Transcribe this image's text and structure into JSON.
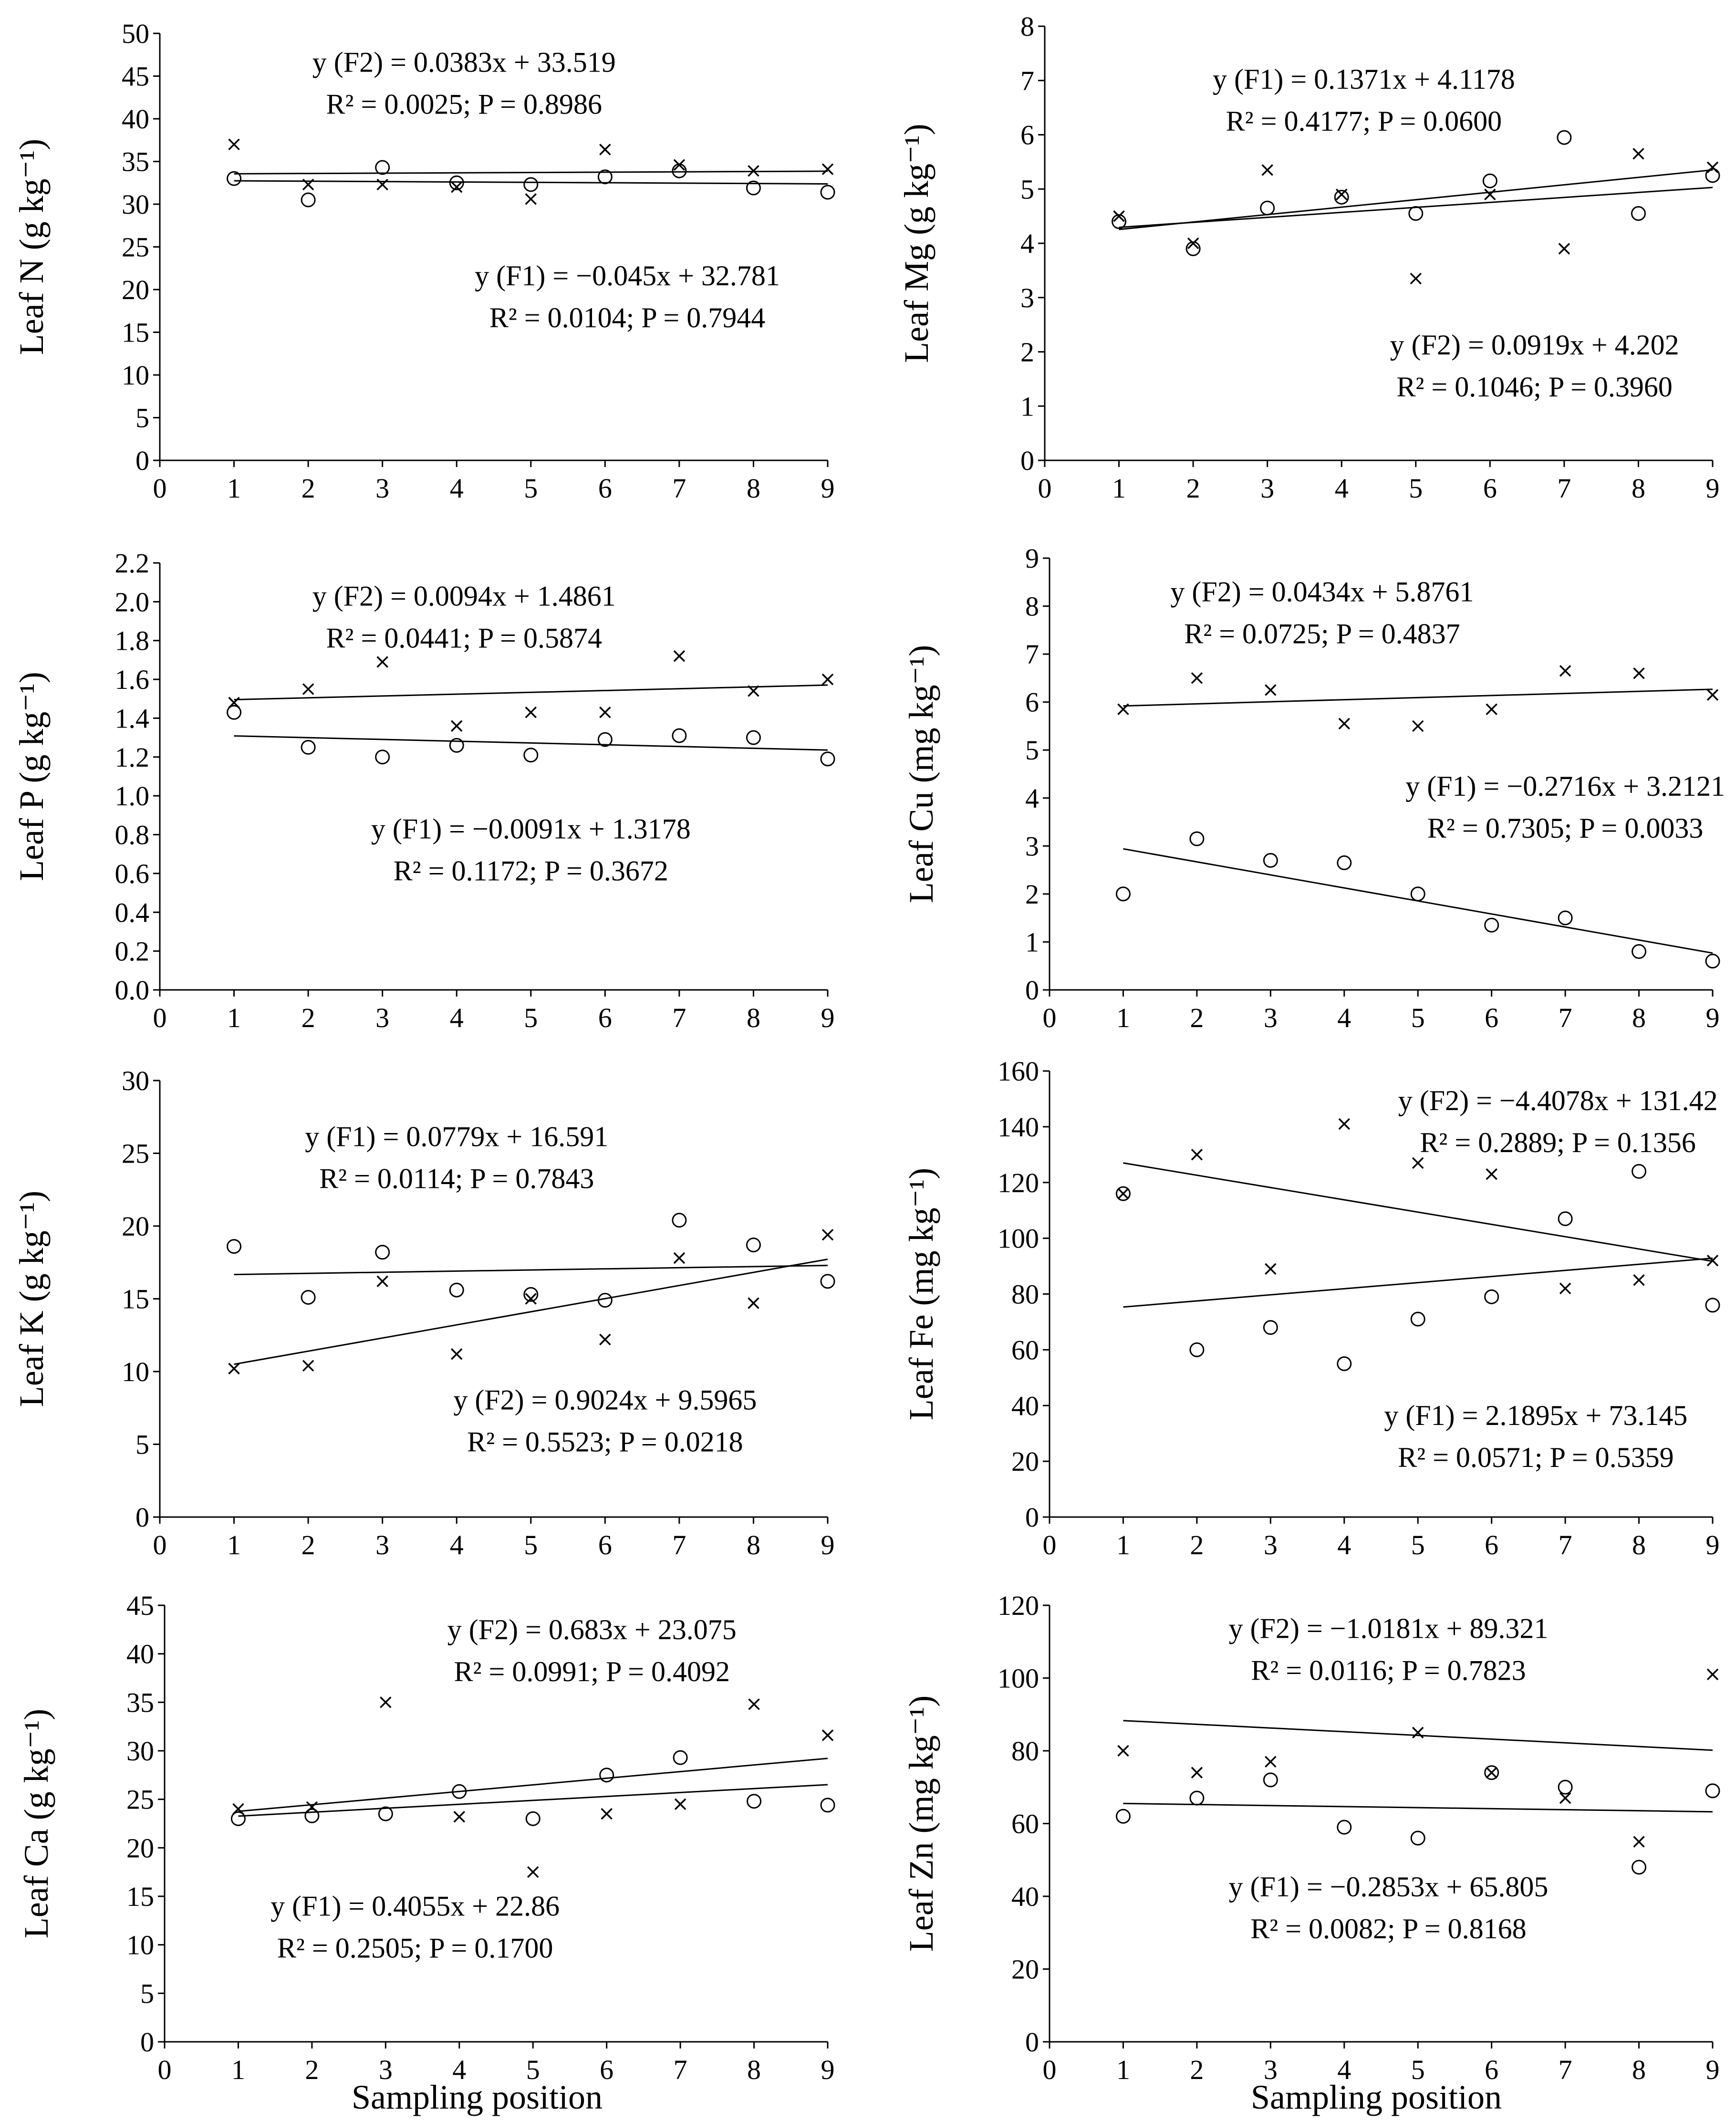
{
  "x_axis_title": "Sampling position",
  "chart_data": [
    {
      "type": "scatter",
      "id": "N",
      "ylabel": "Leaf N (g kg⁻¹)",
      "xlim": [
        0,
        9
      ],
      "ylim": [
        0,
        50
      ],
      "ystep": 5,
      "ydec": 0,
      "xticks": [
        0,
        1,
        2,
        3,
        4,
        5,
        6,
        7,
        8,
        9
      ],
      "series": [
        {
          "name": "F1",
          "marker": "circle",
          "x": [
            1,
            2,
            3,
            4,
            5,
            6,
            7,
            8,
            9
          ],
          "y": [
            33.0,
            30.5,
            34.3,
            32.5,
            32.3,
            33.2,
            33.9,
            31.9,
            31.4
          ],
          "fit": {
            "slope": -0.045,
            "intercept": 32.781
          }
        },
        {
          "name": "F2",
          "marker": "x",
          "x": [
            1,
            2,
            3,
            4,
            5,
            6,
            7,
            8,
            9
          ],
          "y": [
            37.0,
            32.3,
            32.3,
            32.0,
            30.6,
            36.4,
            34.6,
            33.9,
            34.1
          ],
          "fit": {
            "slope": 0.0383,
            "intercept": 33.519
          }
        }
      ],
      "annotations": [
        {
          "lines": [
            "y (F2) = 0.0383x + 33.519",
            "R² = 0.0025; P = 0.8986"
          ],
          "at": [
            4.1,
            45.5
          ]
        },
        {
          "lines": [
            "y (F1) = −0.045x + 32.781",
            "R² = 0.0104; P = 0.7944"
          ],
          "at": [
            6.3,
            20.5
          ]
        }
      ]
    },
    {
      "type": "scatter",
      "id": "Mg",
      "ylabel": "Leaf Mg (g kg⁻¹)",
      "xlim": [
        0,
        9
      ],
      "ylim": [
        0,
        8
      ],
      "ystep": 1,
      "ydec": 0,
      "xticks": [
        0,
        1,
        2,
        3,
        4,
        5,
        6,
        7,
        8,
        9
      ],
      "series": [
        {
          "name": "F1",
          "marker": "x",
          "x": [
            1,
            2,
            3,
            4,
            5,
            6,
            7,
            8,
            9
          ],
          "y": [
            4.5,
            4.0,
            5.35,
            4.9,
            3.35,
            4.9,
            3.9,
            5.65,
            5.4
          ],
          "fit": {
            "slope": 0.1371,
            "intercept": 4.1178
          }
        },
        {
          "name": "F2",
          "marker": "circle",
          "x": [
            1,
            2,
            3,
            4,
            5,
            6,
            7,
            8,
            9
          ],
          "y": [
            4.4,
            3.9,
            4.65,
            4.85,
            4.55,
            5.15,
            5.95,
            4.55,
            5.25
          ],
          "fit": {
            "slope": 0.0919,
            "intercept": 4.202
          }
        }
      ],
      "annotations": [
        {
          "lines": [
            "y (F1) = 0.1371x + 4.1178",
            "R² = 0.4177; P = 0.0600"
          ],
          "at": [
            4.3,
            6.85
          ]
        },
        {
          "lines": [
            "y (F2) = 0.0919x + 4.202",
            "R² = 0.1046; P = 0.3960"
          ],
          "at": [
            6.6,
            1.95
          ]
        }
      ]
    },
    {
      "type": "scatter",
      "id": "P",
      "ylabel": "Leaf P (g kg⁻¹)",
      "xlim": [
        0,
        9
      ],
      "ylim": [
        0,
        2.2
      ],
      "ystep": 0.2,
      "ydec": 1,
      "xticks": [
        0,
        1,
        2,
        3,
        4,
        5,
        6,
        7,
        8,
        9
      ],
      "series": [
        {
          "name": "F1",
          "marker": "circle",
          "x": [
            1,
            2,
            3,
            4,
            5,
            6,
            7,
            8,
            9
          ],
          "y": [
            1.43,
            1.25,
            1.2,
            1.26,
            1.21,
            1.29,
            1.31,
            1.3,
            1.19
          ],
          "fit": {
            "slope": -0.0091,
            "intercept": 1.3178
          }
        },
        {
          "name": "F2",
          "marker": "x",
          "x": [
            1,
            2,
            3,
            4,
            5,
            6,
            7,
            8,
            9
          ],
          "y": [
            1.48,
            1.55,
            1.69,
            1.36,
            1.43,
            1.43,
            1.72,
            1.54,
            1.6
          ],
          "fit": {
            "slope": 0.0094,
            "intercept": 1.4861
          }
        }
      ],
      "annotations": [
        {
          "lines": [
            "y (F2)  = 0.0094x + 1.4861",
            "R² = 0.0441; P = 0.5874"
          ],
          "at": [
            4.1,
            1.98
          ]
        },
        {
          "lines": [
            "y (F1) = −0.0091x + 1.3178",
            "R² = 0.1172; P = 0.3672"
          ],
          "at": [
            5.0,
            0.78
          ]
        }
      ]
    },
    {
      "type": "scatter",
      "id": "Cu",
      "ylabel": "Leaf Cu (mg kg⁻¹)",
      "xlim": [
        0,
        9
      ],
      "ylim": [
        0,
        9
      ],
      "ystep": 1,
      "ydec": 0,
      "xticks": [
        0,
        1,
        2,
        3,
        4,
        5,
        6,
        7,
        8,
        9
      ],
      "series": [
        {
          "name": "F1",
          "marker": "circle",
          "x": [
            1,
            2,
            3,
            4,
            5,
            6,
            7,
            8,
            9
          ],
          "y": [
            2.0,
            3.15,
            2.7,
            2.65,
            2.0,
            1.35,
            1.5,
            0.8,
            0.6
          ],
          "fit": {
            "slope": -0.2716,
            "intercept": 3.2121
          }
        },
        {
          "name": "F2",
          "marker": "x",
          "x": [
            1,
            2,
            3,
            4,
            5,
            6,
            7,
            8,
            9
          ],
          "y": [
            5.85,
            6.5,
            6.25,
            5.55,
            5.5,
            5.85,
            6.65,
            6.6,
            6.15
          ],
          "fit": {
            "slope": 0.0434,
            "intercept": 5.8761
          }
        }
      ],
      "annotations": [
        {
          "lines": [
            "y (F2) = 0.0434x + 5.8761",
            "R² = 0.0725; P = 0.4837"
          ],
          "at": [
            3.7,
            8.1
          ]
        },
        {
          "lines": [
            "y (F1) = −0.2716x + 3.2121",
            "R² = 0.7305; P = 0.0033"
          ],
          "at": [
            7.0,
            4.05
          ]
        }
      ]
    },
    {
      "type": "scatter",
      "id": "K",
      "ylabel": "Leaf K (g kg⁻¹)",
      "xlim": [
        0,
        9
      ],
      "ylim": [
        0,
        30
      ],
      "ystep": 5,
      "ydec": 0,
      "xticks": [
        0,
        1,
        2,
        3,
        4,
        5,
        6,
        7,
        8,
        9
      ],
      "series": [
        {
          "name": "F1",
          "marker": "circle",
          "x": [
            1,
            2,
            3,
            4,
            5,
            6,
            7,
            8,
            9
          ],
          "y": [
            18.6,
            15.1,
            18.2,
            15.6,
            15.3,
            14.9,
            20.4,
            18.7,
            16.2
          ],
          "fit": {
            "slope": 0.0779,
            "intercept": 16.591
          }
        },
        {
          "name": "F2",
          "marker": "x",
          "x": [
            1,
            2,
            3,
            4,
            5,
            6,
            7,
            8,
            9
          ],
          "y": [
            10.2,
            10.4,
            16.2,
            11.2,
            15.0,
            12.2,
            17.8,
            14.7,
            19.4
          ],
          "fit": {
            "slope": 0.9024,
            "intercept": 9.5965
          }
        }
      ],
      "annotations": [
        {
          "lines": [
            "y (F1) = 0.0779x + 16.591",
            "R² = 0.0114; P = 0.7843"
          ],
          "at": [
            4.0,
            25.5
          ]
        },
        {
          "lines": [
            "y (F2) = 0.9024x + 9.5965",
            "R² = 0.5523; P = 0.0218"
          ],
          "at": [
            6.0,
            7.4
          ]
        }
      ]
    },
    {
      "type": "scatter",
      "id": "Fe",
      "ylabel": "Leaf Fe (mg kg⁻¹)",
      "xlim": [
        0,
        9
      ],
      "ylim": [
        0,
        160
      ],
      "ystep": 20,
      "ydec": 0,
      "xticks": [
        0,
        1,
        2,
        3,
        4,
        5,
        6,
        7,
        8,
        9
      ],
      "series": [
        {
          "name": "F1",
          "marker": "circle",
          "x": [
            1,
            2,
            3,
            4,
            5,
            6,
            7,
            8,
            9
          ],
          "y": [
            116,
            60,
            68,
            55,
            71,
            79,
            107,
            124,
            76
          ],
          "fit": {
            "slope": 2.1895,
            "intercept": 73.145
          }
        },
        {
          "name": "F2",
          "marker": "x",
          "x": [
            1,
            2,
            3,
            4,
            5,
            6,
            7,
            8,
            9
          ],
          "y": [
            116,
            130,
            89,
            141,
            127,
            123,
            82,
            85,
            92
          ],
          "fit": {
            "slope": -4.4078,
            "intercept": 131.42
          }
        }
      ],
      "annotations": [
        {
          "lines": [
            "y (F2) = −4.4078x + 131.42",
            "R² = 0.2889; P = 0.1356"
          ],
          "at": [
            6.9,
            146
          ]
        },
        {
          "lines": [
            "y (F1) = 2.1895x + 73.145",
            "R² = 0.0571; P = 0.5359"
          ],
          "at": [
            6.6,
            33
          ]
        }
      ]
    },
    {
      "type": "scatter",
      "id": "Ca",
      "ylabel": "Leaf Ca (g kg⁻¹)",
      "xlim": [
        0,
        9
      ],
      "ylim": [
        0,
        45
      ],
      "ystep": 5,
      "ydec": 0,
      "xticks": [
        0,
        1,
        2,
        3,
        4,
        5,
        6,
        7,
        8,
        9
      ],
      "series": [
        {
          "name": "F1",
          "marker": "x",
          "x": [
            1,
            2,
            3,
            4,
            5,
            6,
            7,
            8,
            9
          ],
          "y": [
            24.0,
            24.2,
            35.0,
            23.2,
            17.5,
            23.5,
            24.5,
            34.8,
            31.6
          ],
          "fit": {
            "slope": 0.4055,
            "intercept": 22.86
          }
        },
        {
          "name": "F2",
          "marker": "circle",
          "x": [
            1,
            2,
            3,
            4,
            5,
            6,
            7,
            8,
            9
          ],
          "y": [
            23.0,
            23.3,
            23.5,
            25.8,
            23.0,
            27.5,
            29.3,
            24.8,
            24.4
          ],
          "fit": {
            "slope": 0.683,
            "intercept": 23.075
          }
        }
      ],
      "annotations": [
        {
          "lines": [
            "y (F2) = 0.683x + 23.075",
            "R² = 0.0991; P = 0.4092"
          ],
          "at": [
            5.8,
            41.5
          ]
        },
        {
          "lines": [
            "y (F1) = 0.4055x + 22.86",
            "R² = 0.2505; P = 0.1700"
          ],
          "at": [
            3.4,
            13.0
          ]
        }
      ]
    },
    {
      "type": "scatter",
      "id": "Zn",
      "ylabel": "Leaf Zn (mg kg⁻¹)",
      "xlim": [
        0,
        9
      ],
      "ylim": [
        0,
        120
      ],
      "ystep": 20,
      "ydec": 0,
      "xticks": [
        0,
        1,
        2,
        3,
        4,
        5,
        6,
        7,
        8,
        9
      ],
      "series": [
        {
          "name": "F1",
          "marker": "circle",
          "x": [
            1,
            2,
            3,
            4,
            5,
            6,
            7,
            8,
            9
          ],
          "y": [
            62,
            67,
            72,
            59,
            56,
            74,
            70,
            48,
            69
          ],
          "fit": {
            "slope": -0.2853,
            "intercept": 65.805
          }
        },
        {
          "name": "F2",
          "marker": "x",
          "x": [
            1,
            2,
            3,
            4,
            5,
            6,
            7,
            8,
            9
          ],
          "y": [
            80,
            74,
            77,
            null,
            85,
            74,
            67,
            55,
            101
          ],
          "fit": {
            "slope": -1.0181,
            "intercept": 89.321
          }
        }
      ],
      "annotations": [
        {
          "lines": [
            "y (F2) = −1.0181x + 89.321",
            "R² = 0.0116; P = 0.7823"
          ],
          "at": [
            4.6,
            111
          ]
        },
        {
          "lines": [
            "y (F1) = −0.2853x + 65.805",
            "R² = 0.0082; P = 0.8168"
          ],
          "at": [
            4.6,
            40
          ]
        }
      ]
    }
  ]
}
